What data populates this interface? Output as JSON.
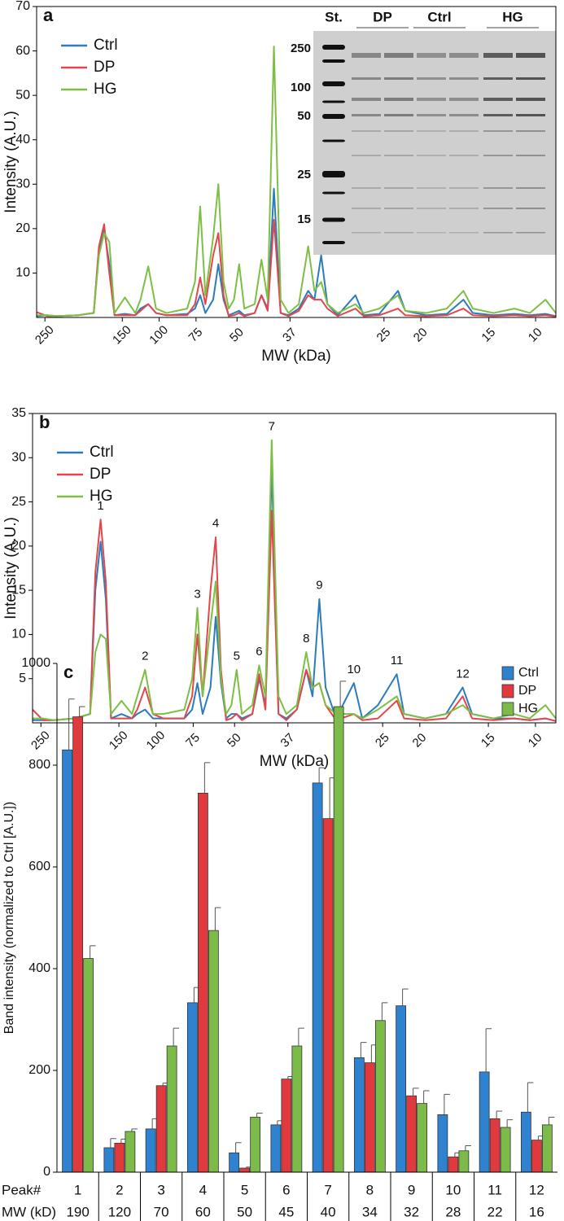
{
  "chart_data": [
    {
      "type": "line",
      "panel_label": "a",
      "xlabel": "MW (kDa)",
      "ylabel": "Intensity (A.U.)",
      "x": [
        0,
        2,
        4,
        8,
        11,
        12,
        13,
        14,
        15,
        17,
        19,
        20,
        21.5,
        23,
        25,
        29,
        30.5,
        31.5,
        32.5,
        34,
        35,
        36,
        37,
        38,
        39,
        40,
        42,
        43.3,
        44.5,
        45.7,
        47,
        48.5,
        50.5,
        52.3,
        53.5,
        54.8,
        56,
        58,
        61.4,
        63,
        66,
        69.6,
        71,
        75,
        79,
        82.2,
        84,
        88,
        92,
        95,
        98,
        100
      ],
      "xlim": [
        0,
        100
      ],
      "xticks": [
        {
          "value": 1.6,
          "label": "250"
        },
        {
          "value": 16.5,
          "label": "150"
        },
        {
          "value": 23.6,
          "label": "100"
        },
        {
          "value": 30.7,
          "label": "75"
        },
        {
          "value": 38.6,
          "label": "50"
        },
        {
          "value": 48.8,
          "label": "37"
        },
        {
          "value": 66.9,
          "label": "25"
        },
        {
          "value": 74,
          "label": "20"
        },
        {
          "value": 87.1,
          "label": "15"
        },
        {
          "value": 96.1,
          "label": "10"
        }
      ],
      "ylim": [
        0,
        70
      ],
      "yticks": [
        10,
        20,
        30,
        40,
        50,
        60,
        70
      ],
      "series": [
        {
          "name": "Ctrl",
          "color": "#2b7bbf",
          "values": [
            0.3,
            0.5,
            0.3,
            0.5,
            1,
            15,
            20,
            12,
            0.5,
            0.8,
            0.5,
            2,
            3,
            1,
            0.5,
            0.8,
            2,
            5,
            1,
            4,
            12,
            4,
            0.5,
            1,
            1.5,
            0.5,
            1,
            5,
            2,
            29,
            1,
            0.5,
            2,
            6,
            4,
            14,
            3,
            0.5,
            5,
            0.5,
            0.8,
            6,
            1.5,
            0.5,
            0.8,
            4,
            1,
            0.5,
            0.8,
            0.5,
            0.8,
            0.3
          ]
        },
        {
          "name": "DP",
          "color": "#e2474b",
          "values": [
            1.2,
            0.3,
            0.3,
            0.5,
            1,
            16,
            21,
            10,
            0.5,
            0.5,
            0.5,
            1.5,
            3,
            1,
            0.5,
            0.5,
            3,
            9,
            3,
            14,
            19,
            5,
            0.3,
            0.5,
            1,
            0.3,
            1,
            5,
            1.5,
            22,
            1,
            0.3,
            1.5,
            5,
            4,
            4,
            2,
            0.3,
            2,
            0.3,
            0.5,
            2,
            0.5,
            0.3,
            0.5,
            2,
            0.5,
            0.3,
            0.5,
            0.3,
            0.5,
            0.2
          ]
        },
        {
          "name": "HG",
          "color": "#7dbf45",
          "values": [
            0.5,
            0.5,
            0.3,
            0.5,
            1,
            14,
            19,
            17,
            1,
            4.5,
            1,
            4,
            11.5,
            2,
            1,
            2,
            8,
            25,
            5,
            18,
            30,
            8,
            2,
            4,
            12,
            2,
            3,
            13,
            4,
            61,
            4,
            1,
            3,
            16,
            6,
            8,
            3,
            1,
            3,
            1,
            2,
            5,
            1.5,
            1,
            2,
            6,
            2,
            1,
            2,
            1,
            4,
            1
          ]
        }
      ],
      "inset": {
        "lanes": [
          "St.",
          "DP",
          "Ctrl",
          "HG"
        ],
        "markers": [
          "250",
          "100",
          "50",
          "25",
          "15"
        ]
      }
    },
    {
      "type": "line",
      "panel_label": "b",
      "xlabel": "MW (kDa)",
      "ylabel": "Intensity (A.U.)",
      "x": [
        0,
        2,
        4,
        8,
        11,
        12,
        13,
        14,
        15,
        17,
        19,
        20,
        21.5,
        23,
        25,
        29,
        30.5,
        31.5,
        32.5,
        34,
        35,
        36,
        37,
        38,
        39,
        40,
        42,
        43.3,
        44.5,
        45.7,
        47,
        48.5,
        50.5,
        52.3,
        53.5,
        54.8,
        56,
        58,
        61.4,
        63,
        66,
        69.6,
        71,
        75,
        79,
        82.2,
        84,
        88,
        92,
        95,
        98,
        100
      ],
      "xlim": [
        0,
        100
      ],
      "xticks": [
        {
          "value": 1.6,
          "label": "250"
        },
        {
          "value": 16.5,
          "label": "150"
        },
        {
          "value": 23.6,
          "label": "100"
        },
        {
          "value": 30.7,
          "label": "75"
        },
        {
          "value": 38.6,
          "label": "50"
        },
        {
          "value": 48.8,
          "label": "37"
        },
        {
          "value": 66.9,
          "label": "25"
        },
        {
          "value": 74,
          "label": "20"
        },
        {
          "value": 87.1,
          "label": "15"
        },
        {
          "value": 96.1,
          "label": "10"
        }
      ],
      "ylim": [
        0,
        35
      ],
      "yticks": [
        5,
        10,
        15,
        20,
        25,
        30,
        35
      ],
      "series": [
        {
          "name": "Ctrl",
          "color": "#2b7bbf",
          "values": [
            0.3,
            0.3,
            0.3,
            0.5,
            1,
            15,
            20.5,
            14,
            0.5,
            1,
            0.5,
            1,
            1.5,
            0.5,
            0.5,
            0.5,
            1.5,
            4.5,
            1,
            4,
            12,
            4.5,
            0.5,
            1,
            1,
            0.5,
            1,
            5,
            2,
            29,
            1,
            0.5,
            1.5,
            6,
            3,
            14,
            4,
            0.5,
            4.5,
            0.5,
            2,
            5.5,
            1,
            0.5,
            1,
            4,
            1,
            0.5,
            0.5,
            0.3,
            0.5,
            0.2
          ]
        },
        {
          "name": "DP",
          "color": "#e2474b",
          "values": [
            1.5,
            0.3,
            0.3,
            0.5,
            1,
            17,
            23,
            16,
            0.5,
            0.5,
            0.5,
            1.5,
            4,
            1,
            0.5,
            0.5,
            3,
            10,
            3,
            15,
            21,
            6,
            0.3,
            0.5,
            1,
            0.3,
            1,
            5.5,
            1.5,
            24,
            1,
            0.3,
            1.5,
            6,
            4,
            4.5,
            2,
            0.3,
            1,
            0.3,
            0.5,
            2.5,
            0.5,
            0.3,
            0.5,
            3,
            0.5,
            0.3,
            0.5,
            0.3,
            0.5,
            0.2
          ]
        },
        {
          "name": "HG",
          "color": "#7dbf45",
          "values": [
            0.5,
            0.5,
            0.3,
            0.5,
            1,
            8,
            10,
            9.5,
            1,
            2.5,
            1,
            3,
            6,
            1,
            1,
            1.5,
            5,
            13,
            3,
            11,
            16,
            5,
            1,
            2,
            6,
            1,
            2,
            6.5,
            3,
            32,
            3,
            1,
            2,
            8,
            4,
            4.5,
            2,
            1,
            1,
            0.5,
            1.5,
            3,
            1,
            0.5,
            1,
            2,
            1,
            0.5,
            1,
            0.5,
            2,
            0.5
          ]
        }
      ],
      "annotations": [
        {
          "text": "1",
          "x": 13,
          "y": 24.5
        },
        {
          "text": "2",
          "x": 21.5,
          "y": 7.5
        },
        {
          "text": "3",
          "x": 31.5,
          "y": 14.5
        },
        {
          "text": "4",
          "x": 35,
          "y": 22.5
        },
        {
          "text": "5",
          "x": 39,
          "y": 7.5
        },
        {
          "text": "6",
          "x": 43.3,
          "y": 8
        },
        {
          "text": "7",
          "x": 45.7,
          "y": 33.5
        },
        {
          "text": "8",
          "x": 52.3,
          "y": 9.5
        },
        {
          "text": "9",
          "x": 54.8,
          "y": 15.5
        },
        {
          "text": "10",
          "x": 61.4,
          "y": 6
        },
        {
          "text": "11",
          "x": 69.6,
          "y": 7
        },
        {
          "text": "12",
          "x": 82.2,
          "y": 5.5
        }
      ]
    },
    {
      "type": "bar",
      "panel_label": "c",
      "ylabel": "Band intensity (normalized to Ctrl [A.U.])",
      "row_labels": [
        "Peak#",
        "MW (kD)"
      ],
      "categories": [
        "1",
        "2",
        "3",
        "4",
        "5",
        "6",
        "7",
        "8",
        "9",
        "10",
        "11",
        "12"
      ],
      "mw": [
        190,
        120,
        70,
        60,
        50,
        45,
        40,
        34,
        32,
        28,
        22,
        16
      ],
      "ylim": [
        0,
        1000
      ],
      "yticks": [
        0,
        200,
        400,
        600,
        800,
        1000
      ],
      "series": [
        {
          "name": "Ctrl",
          "color": "#2f82d0",
          "values": [
            830,
            48,
            85,
            333,
            38,
            93,
            765,
            225,
            327,
            113,
            197,
            118
          ],
          "errors": [
            100,
            18,
            20,
            30,
            20,
            8,
            30,
            30,
            33,
            40,
            85,
            58
          ]
        },
        {
          "name": "DP",
          "color": "#e03a3e",
          "values": [
            895,
            57,
            170,
            745,
            8,
            183,
            695,
            215,
            150,
            30,
            105,
            63
          ],
          "errors": [
            20,
            8,
            5,
            60,
            2,
            5,
            80,
            35,
            15,
            8,
            15,
            8
          ]
        },
        {
          "name": "HG",
          "color": "#7cba4a",
          "values": [
            420,
            80,
            248,
            475,
            108,
            248,
            915,
            298,
            135,
            42,
            88,
            93
          ],
          "errors": [
            25,
            5,
            35,
            45,
            8,
            35,
            50,
            35,
            25,
            10,
            15,
            15
          ]
        }
      ]
    }
  ]
}
